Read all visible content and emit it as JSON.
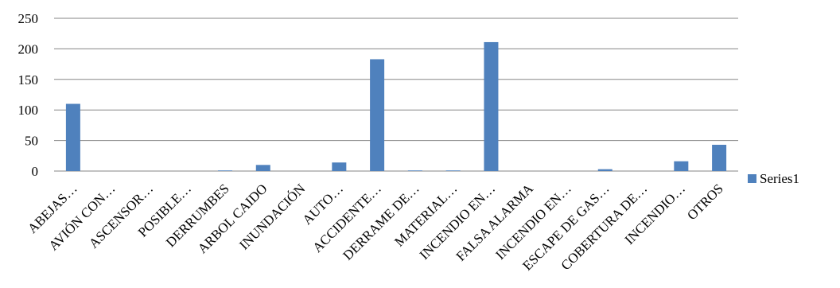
{
  "chart_data": {
    "type": "bar",
    "categories": [
      "ABEJAS…",
      "AVIÓN CON…",
      "ASCENSOR…",
      "POSIBLE…",
      "DERRUMBES",
      "ARBOL CAIDO",
      "INUNDACIÓN",
      "AUTO…",
      "ACCIDENTE…",
      "DERRAME DE…",
      "MATERIAL…",
      "INCENDIO EN…",
      "FALSA ALARMA",
      "INCENDIO EN…",
      "ESCAPE DE GAS…",
      "COBERTURA DE…",
      "INCENDIO…",
      "OTROS"
    ],
    "series": [
      {
        "name": "Series1",
        "values": [
          110,
          0,
          0,
          0,
          1,
          10,
          0,
          14,
          183,
          1,
          1,
          211,
          0,
          0,
          3,
          0,
          16,
          43
        ],
        "color": "#4f81bd"
      }
    ],
    "title": "",
    "xlabel": "",
    "ylabel": "",
    "ylim": [
      0,
      250
    ],
    "yticks": [
      0,
      50,
      100,
      150,
      200,
      250
    ],
    "grid": true,
    "legend": "right"
  }
}
